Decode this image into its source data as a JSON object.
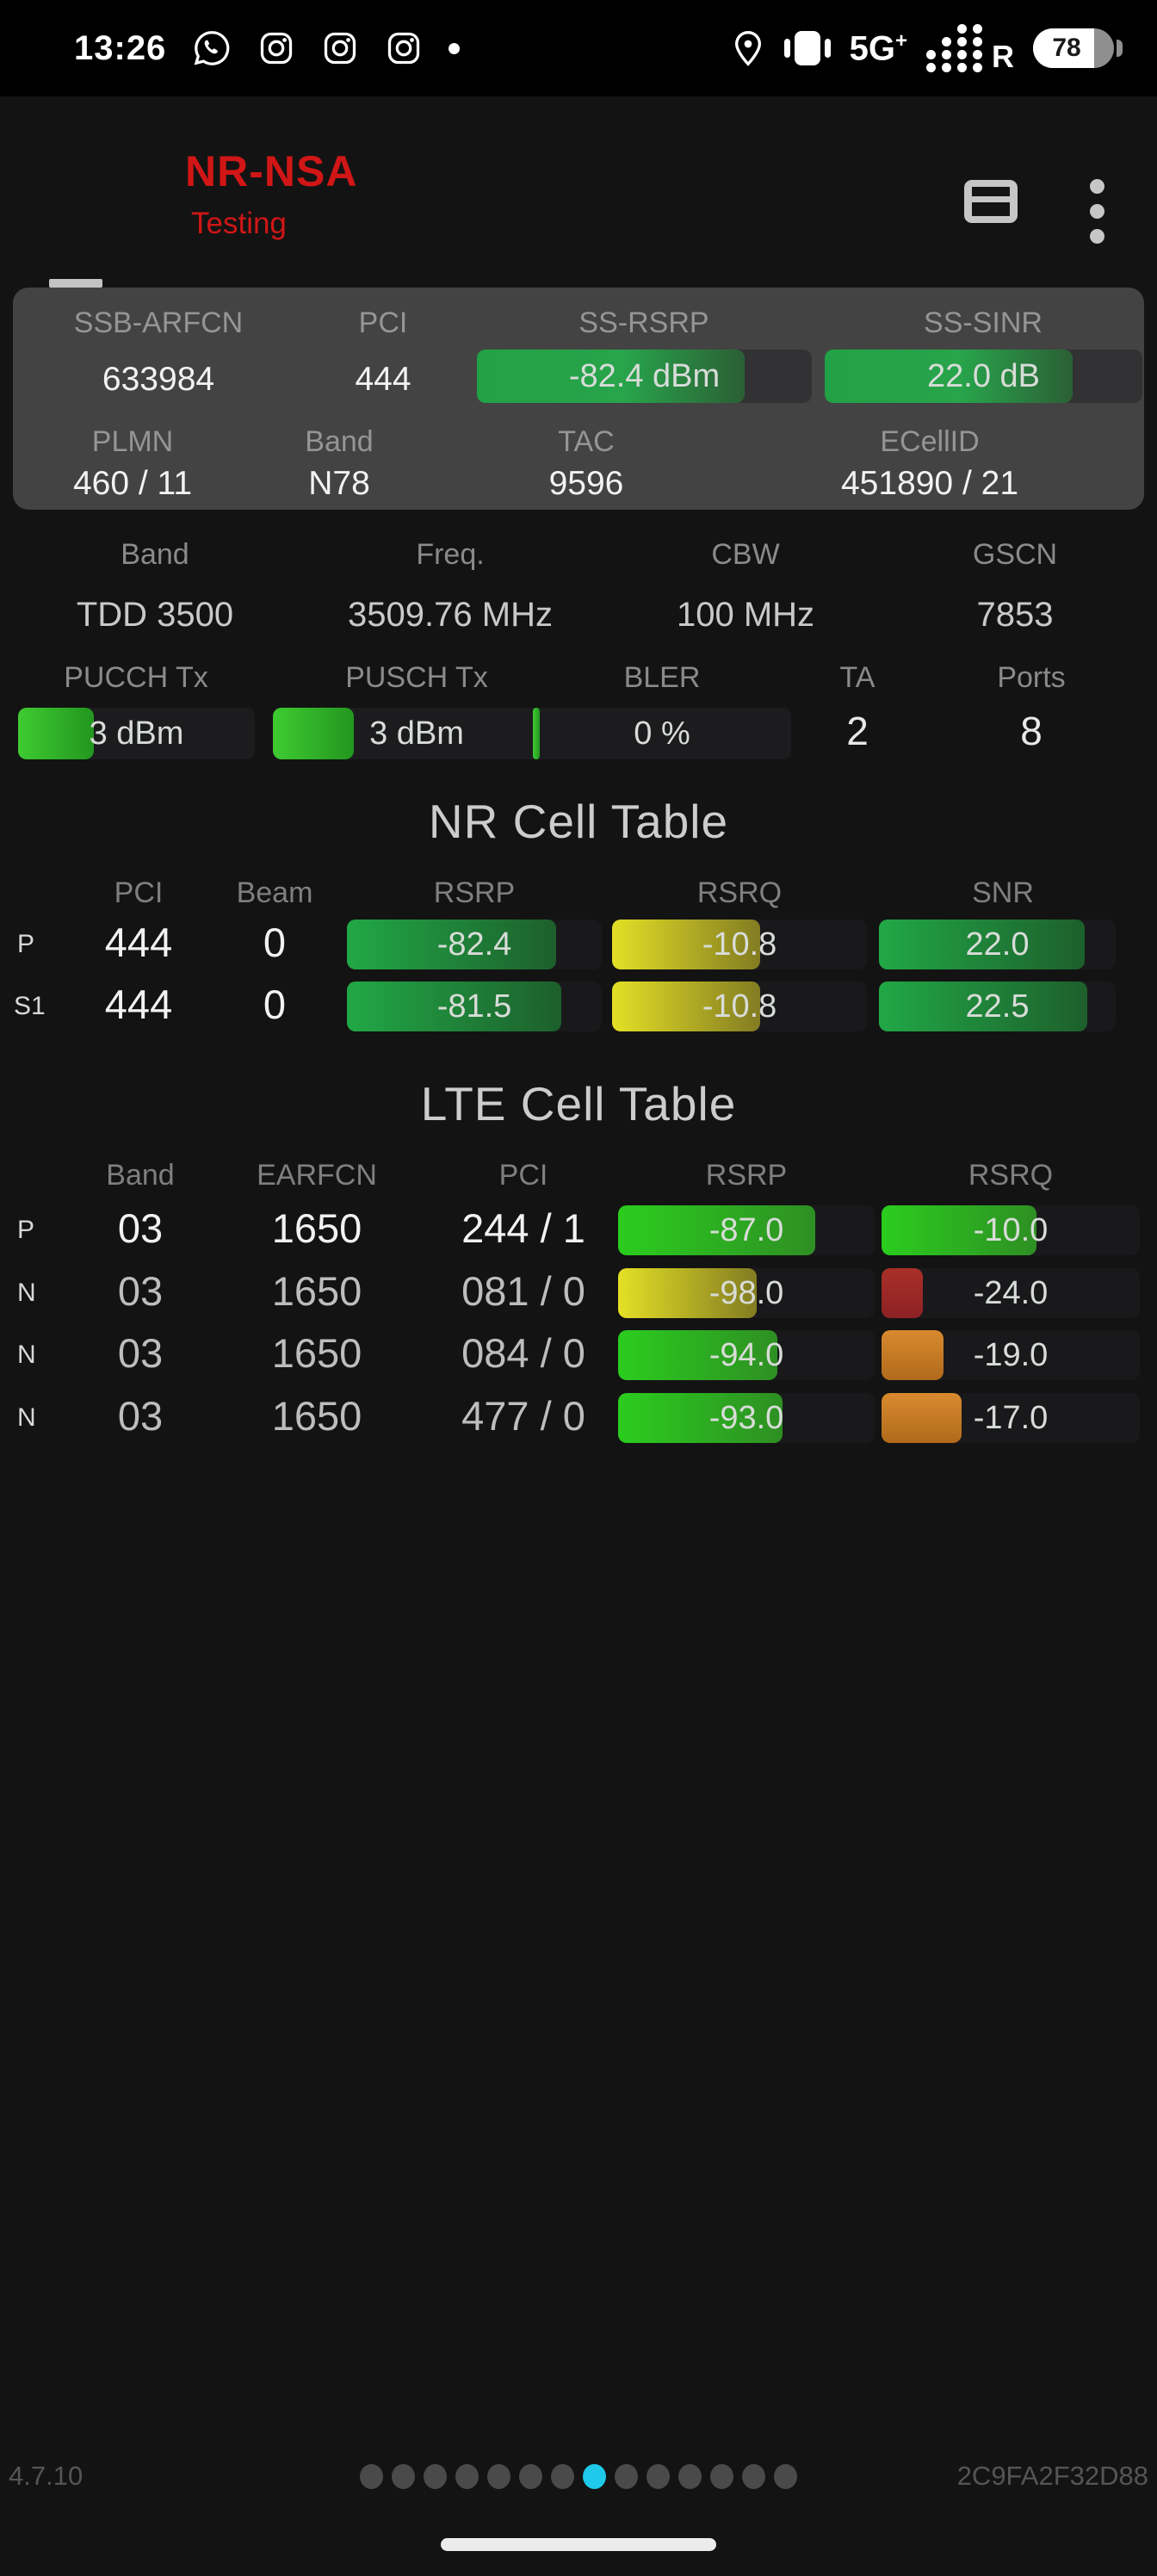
{
  "status_bar": {
    "time": "13:26",
    "notification_icons": [
      "whatsapp-icon",
      "instagram-icon",
      "instagram-icon",
      "instagram-icon",
      "overflow-dot"
    ],
    "network_type": "5G",
    "network_type_suffix": "+",
    "roaming_indicator": "R",
    "battery_percent": "78"
  },
  "header": {
    "title": "NR-NSA",
    "subtitle": "Testing",
    "accent_color": "#d01616"
  },
  "serving_panel": {
    "ssb_arfcn": {
      "label": "SSB-ARFCN",
      "value": "633984"
    },
    "pci": {
      "label": "PCI",
      "value": "444"
    },
    "ss_rsrp": {
      "label": "SS-RSRP",
      "value": "-82.4 dBm",
      "fill": "80%",
      "color": "green-panel"
    },
    "ss_sinr": {
      "label": "SS-SINR",
      "value": "22.0 dB",
      "fill": "78%",
      "color": "green-panel"
    },
    "plmn": {
      "label": "PLMN",
      "value": "460 / 11"
    },
    "band": {
      "label": "Band",
      "value": "N78"
    },
    "tac": {
      "label": "TAC",
      "value": "9596"
    },
    "ecellid": {
      "label": "ECellID",
      "value": "451890 / 21"
    }
  },
  "radio_info": {
    "band": {
      "label": "Band",
      "value": "TDD 3500"
    },
    "freq": {
      "label": "Freq.",
      "value": "3509.76 MHz"
    },
    "cbw": {
      "label": "CBW",
      "value": "100 MHz"
    },
    "gscn": {
      "label": "GSCN",
      "value": "7853"
    },
    "pucch_tx": {
      "label": "PUCCH Tx",
      "value": "3 dBm",
      "fill": "32%",
      "color": "green-tx"
    },
    "pusch_tx": {
      "label": "PUSCH Tx",
      "value": "3 dBm",
      "fill": "28%",
      "color": "green-tx"
    },
    "bler": {
      "label": "BLER",
      "value": "0 %",
      "fill": "2.5%",
      "color": "green-tx"
    },
    "ta": {
      "label": "TA",
      "value": "2"
    },
    "ports": {
      "label": "Ports",
      "value": "8"
    }
  },
  "nr_table": {
    "title": "NR Cell Table",
    "headers": [
      "PCI",
      "Beam",
      "RSRP",
      "RSRQ",
      "SNR"
    ],
    "rows": [
      {
        "tag": "P",
        "pci": "444",
        "beam": "0",
        "rsrp": {
          "value": "-82.4",
          "fill": "82%",
          "color": "green-nr"
        },
        "rsrq": {
          "value": "-10.8",
          "fill": "58%",
          "color": "yellow"
        },
        "snr": {
          "value": "22.0",
          "fill": "87%",
          "color": "green-nr"
        }
      },
      {
        "tag": "S1",
        "pci": "444",
        "beam": "0",
        "rsrp": {
          "value": "-81.5",
          "fill": "84%",
          "color": "green-nr"
        },
        "rsrq": {
          "value": "-10.8",
          "fill": "58%",
          "color": "yellow"
        },
        "snr": {
          "value": "22.5",
          "fill": "88%",
          "color": "green-nr"
        }
      }
    ]
  },
  "lte_table": {
    "title": "LTE Cell Table",
    "headers": [
      "Band",
      "EARFCN",
      "PCI",
      "RSRP",
      "RSRQ"
    ],
    "rows": [
      {
        "tag": "P",
        "band": "03",
        "earfcn": "1650",
        "pci": "244 / 1",
        "rsrp": {
          "value": "-87.0",
          "fill": "77%",
          "color": "green-lte"
        },
        "rsrq": {
          "value": "-10.0",
          "fill": "60%",
          "color": "green-lte"
        }
      },
      {
        "tag": "N",
        "band": "03",
        "earfcn": "1650",
        "pci": "081 / 0",
        "rsrp": {
          "value": "-98.0",
          "fill": "54%",
          "color": "yellow"
        },
        "rsrq": {
          "value": "-24.0",
          "fill": "16%",
          "color": "red"
        }
      },
      {
        "tag": "N",
        "band": "03",
        "earfcn": "1650",
        "pci": "084 / 0",
        "rsrp": {
          "value": "-94.0",
          "fill": "62%",
          "color": "green-lte"
        },
        "rsrq": {
          "value": "-19.0",
          "fill": "24%",
          "color": "orange"
        }
      },
      {
        "tag": "N",
        "band": "03",
        "earfcn": "1650",
        "pci": "477 / 0",
        "rsrp": {
          "value": "-93.0",
          "fill": "64%",
          "color": "green-lte"
        },
        "rsrq": {
          "value": "-17.0",
          "fill": "31%",
          "color": "orange"
        }
      }
    ]
  },
  "footer": {
    "version": "4.7.10",
    "device_id": "2C9FA2F32D88",
    "page_dots": {
      "count": 14,
      "active_index": 7,
      "active_color": "#1fc9ea",
      "inactive_color": "#4a4a4a"
    }
  }
}
